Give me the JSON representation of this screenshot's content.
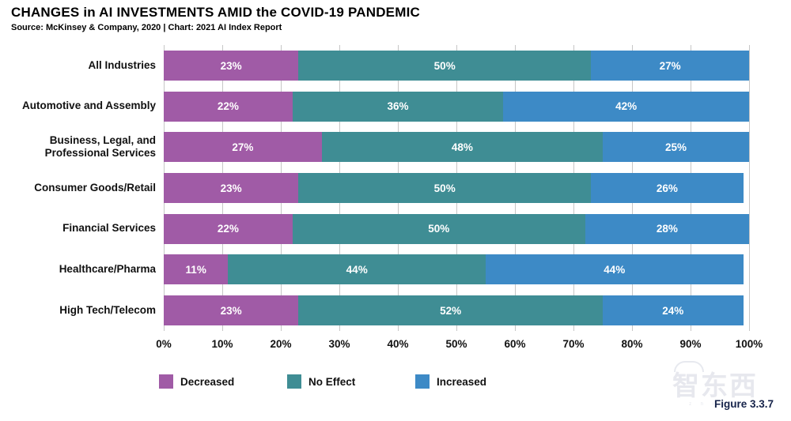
{
  "header": {
    "title": "CHANGES in AI INVESTMENTS AMID the COVID-19 PANDEMIC",
    "subtitle": "Source: McKinsey & Company, 2020 | Chart: 2021 AI Index Report"
  },
  "figure_label": "Figure 3.3.7",
  "watermark": {
    "text": "智东西",
    "subtext": "z h i d x"
  },
  "chart_data": {
    "type": "bar",
    "orientation": "horizontal",
    "stacked": true,
    "unit": "%",
    "title": "CHANGES in AI INVESTMENTS AMID the COVID-19 PANDEMIC",
    "subtitle": "Source: McKinsey & Company, 2020 | Chart: 2021 AI Index Report",
    "categories": [
      "All Industries",
      "Automotive and Assembly",
      "Business, Legal, and Professional Services",
      "Consumer Goods/Retail",
      "Financial Services",
      "Healthcare/Pharma",
      "High Tech/Telecom"
    ],
    "series": [
      {
        "name": "Decreased",
        "color": "#a05ba6",
        "values": [
          23,
          22,
          27,
          23,
          22,
          11,
          23
        ]
      },
      {
        "name": "No Effect",
        "color": "#3f8d94",
        "values": [
          50,
          36,
          48,
          50,
          50,
          44,
          52
        ]
      },
      {
        "name": "Increased",
        "color": "#3d8ac6",
        "values": [
          27,
          42,
          25,
          26,
          28,
          44,
          24
        ]
      }
    ],
    "xlabel": "",
    "ylabel": "",
    "xlim": [
      0,
      100
    ],
    "x_ticks": [
      "0%",
      "10%",
      "20%",
      "30%",
      "40%",
      "50%",
      "60%",
      "70%",
      "80%",
      "90%",
      "100%"
    ],
    "grid": true,
    "gridline_color": "#c6c6c6",
    "legend_position": "bottom",
    "value_label_format": "{value}%"
  }
}
